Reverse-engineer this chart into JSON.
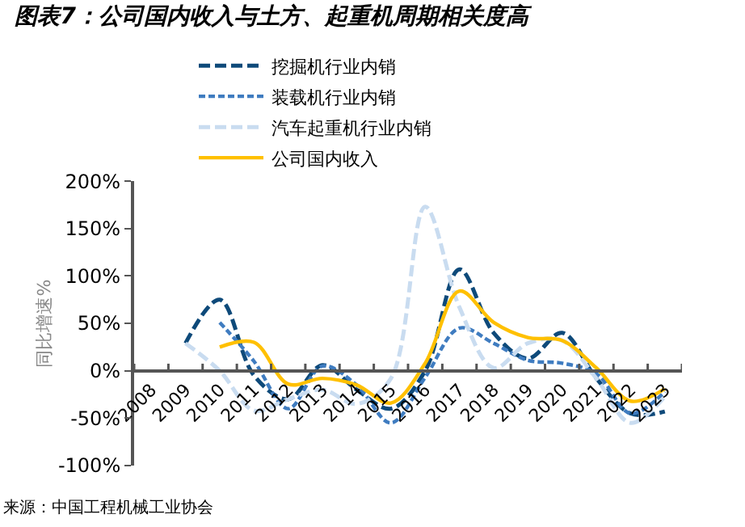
{
  "chart_data": {
    "type": "line",
    "title": "图表7：公司国内收入与土方、起重机周期相关度高",
    "ylabel": "同比增速%",
    "categories": [
      "2008",
      "2009",
      "2010",
      "2011",
      "2012",
      "2013",
      "2014",
      "2015",
      "2016",
      "2017",
      "2018",
      "2019",
      "2020",
      "2021",
      "2022",
      "2023"
    ],
    "series": [
      {
        "name": "挖掘机行业内销",
        "color": "#0e4a7a",
        "line_style": "dashed",
        "values": [
          null,
          29,
          75,
          -5,
          -30,
          6,
          -20,
          -40,
          0,
          107,
          40,
          13,
          40,
          -8,
          -45,
          -43
        ]
      },
      {
        "name": "装载机行业内销",
        "color": "#3f7cc0",
        "line_style": "dotted",
        "values": [
          null,
          null,
          51,
          10,
          -40,
          5,
          -15,
          -55,
          -7,
          45,
          29,
          11,
          8,
          -3,
          -45,
          -22
        ]
      },
      {
        "name": "汽车起重机行业内销",
        "color": "#c9dcf0",
        "line_style": "dashed",
        "values": [
          null,
          29,
          0,
          -42,
          -30,
          -20,
          -35,
          -8,
          173,
          67,
          3,
          29,
          32,
          -8,
          -55,
          -27
        ]
      },
      {
        "name": "公司国内收入",
        "color": "#ffc000",
        "line_style": "solid",
        "values": [
          null,
          null,
          25,
          30,
          -14,
          -8,
          -15,
          -34,
          8,
          84,
          51,
          35,
          32,
          3,
          -32,
          -19
        ]
      }
    ],
    "ylim": [
      -100,
      200
    ],
    "yticks": [
      {
        "value": -100,
        "label": "-100%"
      },
      {
        "value": -50,
        "label": "-50%"
      },
      {
        "value": 0,
        "label": "0%"
      },
      {
        "value": 50,
        "label": "50%"
      },
      {
        "value": 100,
        "label": "100%"
      },
      {
        "value": 150,
        "label": "150%"
      },
      {
        "value": 200,
        "label": "200%"
      }
    ],
    "grid": false,
    "legend": "top",
    "annotations": [
      "来源：中国工程机械工业协会"
    ]
  }
}
